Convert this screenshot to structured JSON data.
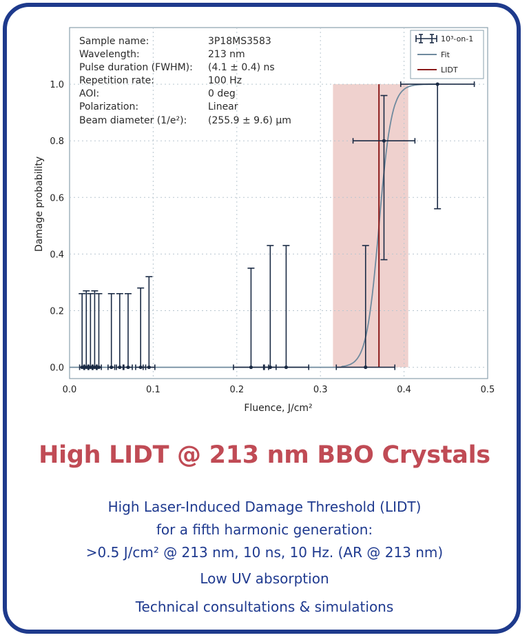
{
  "colors": {
    "frame": "#1e3a8c",
    "headline": "#c04b55",
    "body_text": "#1f3a8f",
    "fit_line": "#6f8a9e",
    "lidt_line": "#8b1a1a",
    "lidt_band": "#ecc9c6",
    "points": "#1a2a44"
  },
  "info_table": [
    {
      "label": "Sample name:",
      "value": "3P18MS3583"
    },
    {
      "label": "Wavelength:",
      "value": "213 nm"
    },
    {
      "label": "Pulse duration (FWHM):",
      "value": "(4.1 ± 0.4) ns"
    },
    {
      "label": "Repetition rate:",
      "value": "100 Hz"
    },
    {
      "label": "AOI:",
      "value": "0 deg"
    },
    {
      "label": "Polarization:",
      "value": "Linear"
    },
    {
      "label": "Beam diameter (1/e²):",
      "value": "(255.9 ± 9.6) µm"
    }
  ],
  "chart_data": {
    "type": "scatter",
    "xlabel": "Fluence, J/cm²",
    "ylabel": "Damage probability",
    "xlim": [
      0.0,
      0.5
    ],
    "ylim": [
      -0.04,
      1.2
    ],
    "x_ticks": [
      "0.0",
      "0.1",
      "0.2",
      "0.3",
      "0.4",
      "0.5"
    ],
    "y_ticks": [
      "0.0",
      "0.2",
      "0.4",
      "0.6",
      "0.8",
      "1.0"
    ],
    "grid": true,
    "legend_position": "top-right",
    "legend": [
      {
        "label": "10³-on-1",
        "kind": "errorbar"
      },
      {
        "label": "Fit",
        "kind": "line"
      },
      {
        "label": "LIDT",
        "kind": "line"
      }
    ],
    "series": [
      {
        "name": "10³-on-1",
        "kind": "errorbar",
        "points": [
          {
            "x": 0.015,
            "y": 0,
            "yerr_up": 0.26,
            "xerr": 0.003
          },
          {
            "x": 0.02,
            "y": 0,
            "yerr_up": 0.27,
            "xerr": 0.003
          },
          {
            "x": 0.025,
            "y": 0,
            "yerr_up": 0.26,
            "xerr": 0.003
          },
          {
            "x": 0.03,
            "y": 0,
            "yerr_up": 0.27,
            "xerr": 0.003
          },
          {
            "x": 0.035,
            "y": 0,
            "yerr_up": 0.26,
            "xerr": 0.003
          },
          {
            "x": 0.05,
            "y": 0,
            "yerr_up": 0.26,
            "xerr": 0.004
          },
          {
            "x": 0.06,
            "y": 0,
            "yerr_up": 0.26,
            "xerr": 0.004
          },
          {
            "x": 0.07,
            "y": 0,
            "yerr_up": 0.26,
            "xerr": 0.005
          },
          {
            "x": 0.085,
            "y": 0,
            "yerr_up": 0.28,
            "xerr": 0.006
          },
          {
            "x": 0.095,
            "y": 0,
            "yerr_up": 0.32,
            "xerr": 0.007
          },
          {
            "x": 0.217,
            "y": 0,
            "yerr_up": 0.35,
            "xerr": 0.021
          },
          {
            "x": 0.24,
            "y": 0,
            "yerr_up": 0.43,
            "xerr": 0.007
          },
          {
            "x": 0.259,
            "y": 0,
            "yerr_up": 0.43,
            "xerr": 0.027
          },
          {
            "x": 0.354,
            "y": 0,
            "yerr_up": 0.43,
            "xerr": 0.035
          },
          {
            "x": 0.376,
            "y": 0.8,
            "yerr_up": 0.16,
            "yerr_down": 0.42,
            "xerr": 0.037
          },
          {
            "x": 0.44,
            "y": 1.0,
            "yerr_down": 0.44,
            "xerr": 0.044
          }
        ]
      },
      {
        "name": "Fit",
        "kind": "sigmoid",
        "start_x": 0.32,
        "center_x": 0.37,
        "saturation_x": 0.43,
        "x_end": 0.44
      },
      {
        "name": "LIDT",
        "kind": "vline",
        "x": 0.37,
        "band": [
          0.315,
          0.405
        ],
        "ymax": 1.0
      }
    ]
  },
  "headline": "High LIDT @ 213 nm BBO Crystals",
  "description": {
    "line1": "High Laser-Induced Damage Threshold (LIDT)",
    "line2": "for a fifth harmonic generation:",
    "line3": ">0.5 J/cm² @ 213 nm, 10 ns, 10 Hz. (AR @ 213 nm)",
    "feature1": "Low UV absorption",
    "feature2": "Technical consultations & simulations"
  }
}
